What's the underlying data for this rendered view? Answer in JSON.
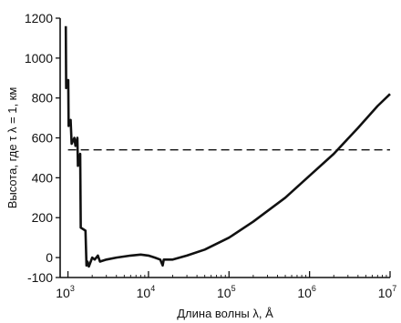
{
  "chart_data": {
    "type": "line",
    "xlabel": "Длина волны λ, Å",
    "ylabel": "Высота, где τ λ = 1, км",
    "x_scale": "log",
    "xlim": [
      800,
      10000000
    ],
    "ylim": [
      -100,
      1200
    ],
    "x_ticks": [
      {
        "value": 1000,
        "base": "10",
        "exp": "3"
      },
      {
        "value": 10000,
        "base": "10",
        "exp": "4"
      },
      {
        "value": 100000,
        "base": "10",
        "exp": "5"
      },
      {
        "value": 1000000,
        "base": "10",
        "exp": "6"
      },
      {
        "value": 10000000,
        "base": "10",
        "exp": "7"
      }
    ],
    "y_ticks": [
      -100,
      0,
      200,
      400,
      600,
      800,
      1000,
      1200
    ],
    "y_tick_labels": [
      "-100",
      "0",
      "200",
      "400",
      "600",
      "800",
      "1000",
      "1200"
    ],
    "series": [
      {
        "style": "solid",
        "points": [
          [
            940,
            1160
          ],
          [
            950,
            850
          ],
          [
            1010,
            890
          ],
          [
            1020,
            660
          ],
          [
            1080,
            690
          ],
          [
            1110,
            570
          ],
          [
            1200,
            600
          ],
          [
            1240,
            560
          ],
          [
            1310,
            600
          ],
          [
            1330,
            460
          ],
          [
            1420,
            520
          ],
          [
            1440,
            150
          ],
          [
            1650,
            135
          ],
          [
            1700,
            -40
          ],
          [
            1750,
            -20
          ],
          [
            1820,
            -45
          ],
          [
            2000,
            0
          ],
          [
            2150,
            -10
          ],
          [
            2350,
            10
          ],
          [
            2500,
            -20
          ],
          [
            3000,
            -10
          ],
          [
            4000,
            0
          ],
          [
            6000,
            10
          ],
          [
            8000,
            15
          ],
          [
            10000,
            10
          ],
          [
            12000,
            0
          ],
          [
            14000,
            -10
          ],
          [
            15000,
            -40
          ],
          [
            15500,
            -10
          ],
          [
            20000,
            -10
          ],
          [
            30000,
            10
          ],
          [
            50000,
            40
          ],
          [
            100000,
            100
          ],
          [
            200000,
            180
          ],
          [
            500000,
            300
          ],
          [
            1000000,
            410
          ],
          [
            2000000,
            520
          ],
          [
            4000000,
            650
          ],
          [
            7000000,
            760
          ],
          [
            10000000,
            820
          ]
        ]
      },
      {
        "style": "dashed",
        "points": [
          [
            1000,
            540
          ],
          [
            10000000,
            540
          ]
        ]
      }
    ],
    "grid": false
  }
}
